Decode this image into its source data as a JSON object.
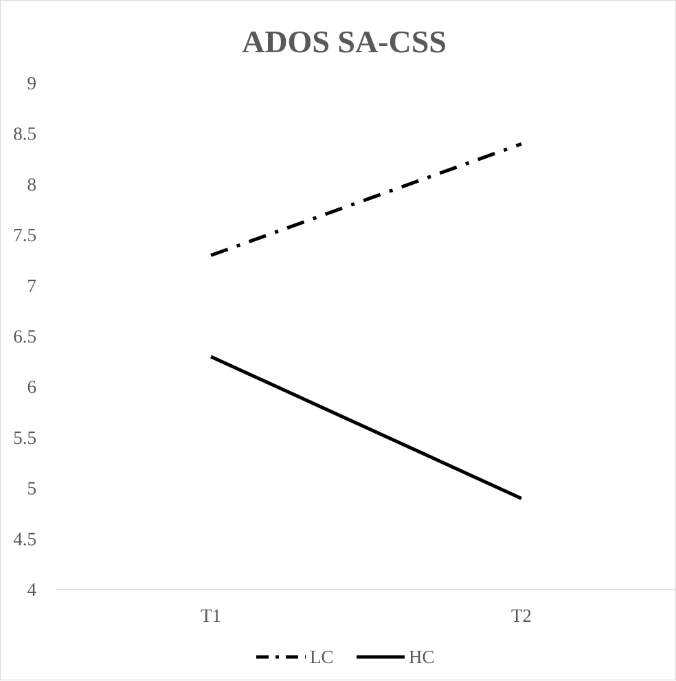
{
  "chart_data": {
    "type": "line",
    "title": "ADOS SA-CSS",
    "xlabel": "",
    "ylabel": "",
    "categories": [
      "T1",
      "T2"
    ],
    "ylim": [
      4,
      9
    ],
    "yticks": [
      4,
      4.5,
      5,
      5.5,
      6,
      6.5,
      7,
      7.5,
      8,
      8.5,
      9
    ],
    "ytick_labels": [
      "4",
      "4.5",
      "5",
      "5.5",
      "6",
      "6.5",
      "7",
      "7.5",
      "8",
      "8.5",
      "9"
    ],
    "grid": false,
    "legend_position": "bottom",
    "series": [
      {
        "name": "LC",
        "values": [
          7.3,
          8.4
        ],
        "line_style": "dash-dot",
        "color": "#000000"
      },
      {
        "name": "HC",
        "values": [
          6.3,
          4.9
        ],
        "line_style": "solid",
        "color": "#000000"
      }
    ],
    "colors": {
      "title": "#595959",
      "ticks": "#595959",
      "axis": "#d9d9d9",
      "lines": "#000000"
    }
  }
}
